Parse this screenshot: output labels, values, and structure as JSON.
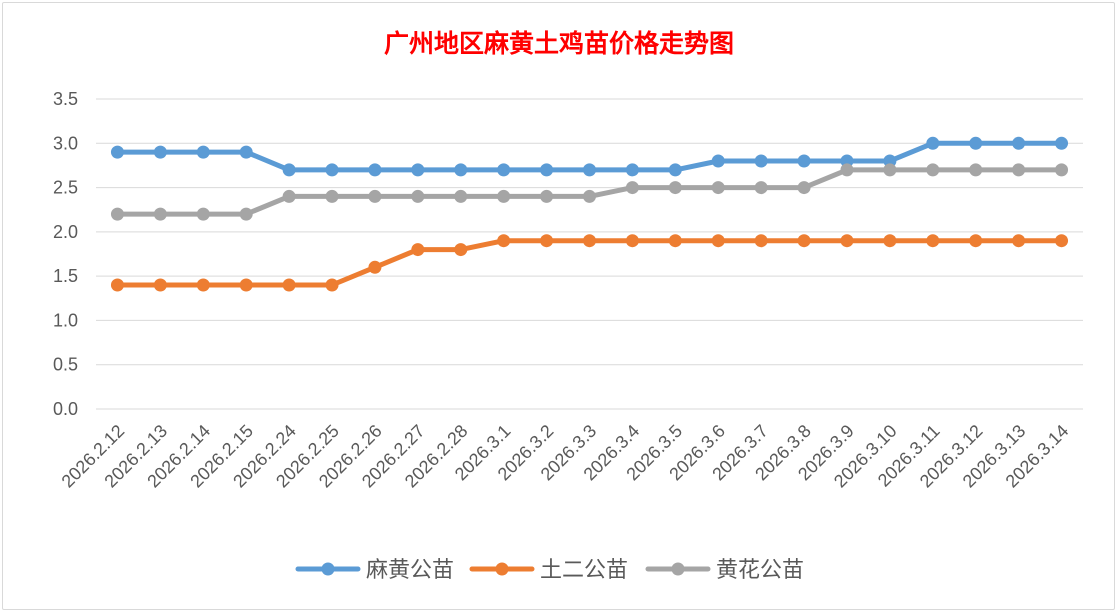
{
  "chart_data": {
    "type": "line",
    "title": "广州地区麻黄土鸡苗价格走势图",
    "categories": [
      "2026.2.12",
      "2026.2.13",
      "2026.2.14",
      "2026.2.15",
      "2026.2.24",
      "2026.2.25",
      "2026.2.26",
      "2026.2.27",
      "2026.2.28",
      "2026.3.1",
      "2026.3.2",
      "2026.3.3",
      "2026.3.4",
      "2026.3.5",
      "2026.3.6",
      "2026.3.7",
      "2026.3.8",
      "2026.3.9",
      "2026.3.10",
      "2026.3.11",
      "2026.3.12",
      "2026.3.13",
      "2026.3.14"
    ],
    "series": [
      {
        "name": "麻黄公苗",
        "color": "#5b9bd5",
        "values": [
          2.9,
          2.9,
          2.9,
          2.9,
          2.7,
          2.7,
          2.7,
          2.7,
          2.7,
          2.7,
          2.7,
          2.7,
          2.7,
          2.7,
          2.8,
          2.8,
          2.8,
          2.8,
          2.8,
          3.0,
          3.0,
          3.0,
          3.0
        ]
      },
      {
        "name": "土二公苗",
        "color": "#ed7d31",
        "values": [
          1.4,
          1.4,
          1.4,
          1.4,
          1.4,
          1.4,
          1.6,
          1.8,
          1.8,
          1.9,
          1.9,
          1.9,
          1.9,
          1.9,
          1.9,
          1.9,
          1.9,
          1.9,
          1.9,
          1.9,
          1.9,
          1.9,
          1.9
        ]
      },
      {
        "name": "黄花公苗",
        "color": "#a5a5a5",
        "values": [
          2.2,
          2.2,
          2.2,
          2.2,
          2.4,
          2.4,
          2.4,
          2.4,
          2.4,
          2.4,
          2.4,
          2.4,
          2.5,
          2.5,
          2.5,
          2.5,
          2.5,
          2.7,
          2.7,
          2.7,
          2.7,
          2.7,
          2.7
        ]
      }
    ],
    "ylim": [
      0,
      3.5
    ],
    "yticks": [
      "0.0",
      "0.5",
      "1.0",
      "1.5",
      "2.0",
      "2.5",
      "3.0",
      "3.5"
    ],
    "grid": true,
    "legend": "bottom",
    "title_color": "#ff0000"
  }
}
